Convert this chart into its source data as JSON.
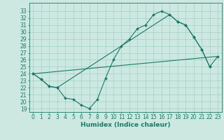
{
  "title": "",
  "xlabel": "Humidex (Indice chaleur)",
  "bg_color": "#cce8e0",
  "grid_color": "#99ccbb",
  "line_color": "#1a7a6a",
  "xlim": [
    -0.5,
    23.5
  ],
  "ylim": [
    18.5,
    34.2
  ],
  "xticks": [
    0,
    1,
    2,
    3,
    4,
    5,
    6,
    7,
    8,
    9,
    10,
    11,
    12,
    13,
    14,
    15,
    16,
    17,
    18,
    19,
    20,
    21,
    22,
    23
  ],
  "yticks": [
    19,
    20,
    21,
    22,
    23,
    24,
    25,
    26,
    27,
    28,
    29,
    30,
    31,
    32,
    33
  ],
  "line1_x": [
    0,
    1,
    2,
    3,
    4,
    5,
    6,
    7,
    8,
    9,
    10,
    11,
    12,
    13,
    14,
    15,
    16,
    17,
    18,
    19,
    20,
    21,
    22
  ],
  "line1_y": [
    24.0,
    23.2,
    22.2,
    22.0,
    20.5,
    20.3,
    19.5,
    19.0,
    20.3,
    23.3,
    26.0,
    28.0,
    29.0,
    30.5,
    31.0,
    32.5,
    33.0,
    32.5,
    31.5,
    31.0,
    29.3,
    27.5,
    25.0
  ],
  "line2_x": [
    0,
    1,
    2,
    3,
    17,
    18,
    19,
    20,
    21,
    22,
    23
  ],
  "line2_y": [
    24.0,
    23.2,
    22.2,
    22.0,
    32.5,
    31.5,
    31.0,
    29.3,
    27.5,
    25.0,
    26.5
  ],
  "line3_x": [
    0,
    23
  ],
  "line3_y": [
    24.0,
    26.5
  ],
  "marker": "D",
  "marker_size": 2,
  "font_size": 5.5,
  "xlabel_fontsize": 6.5
}
